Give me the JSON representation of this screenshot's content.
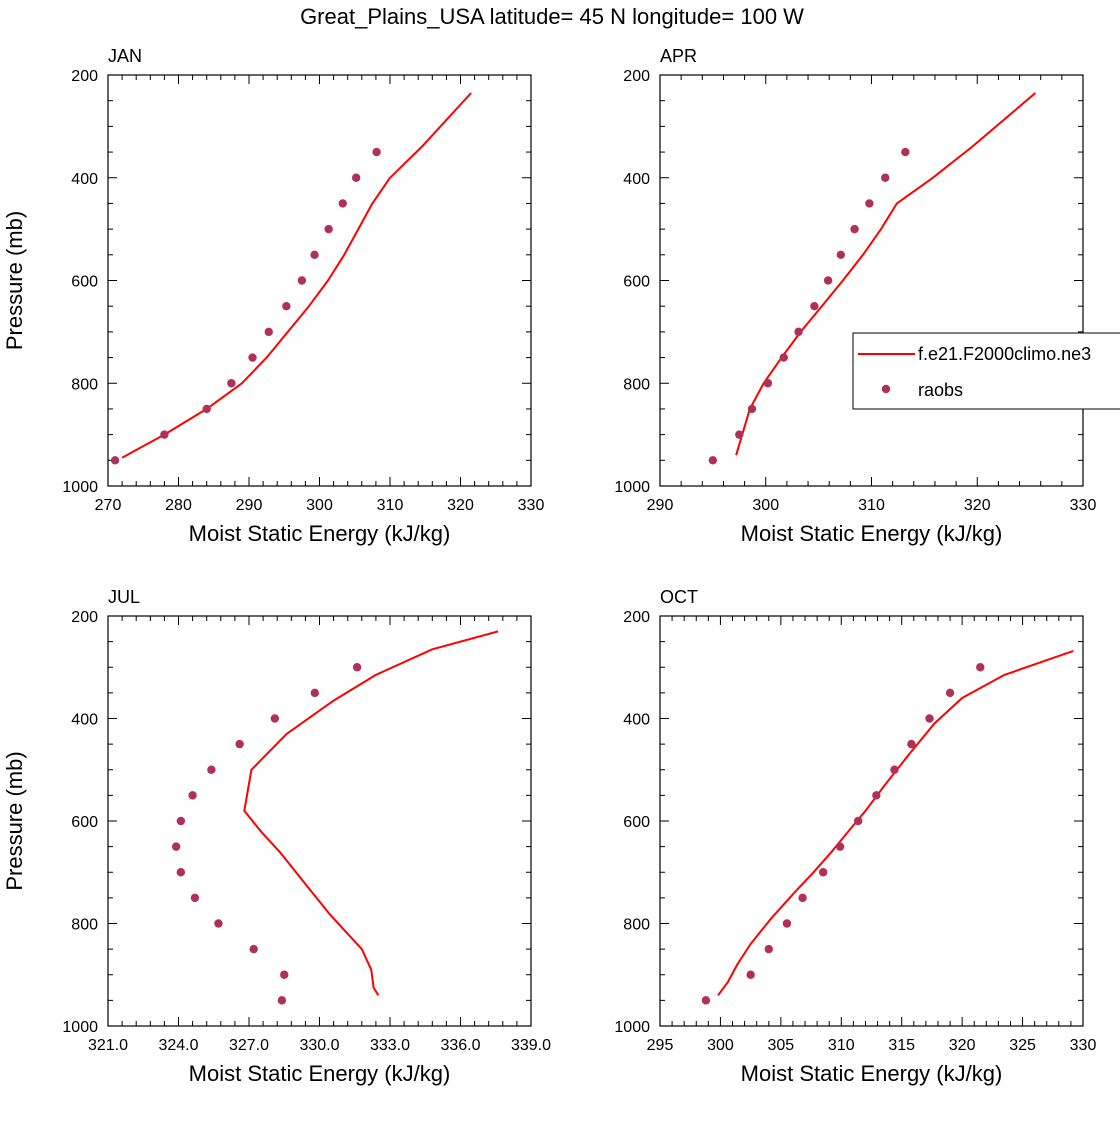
{
  "figure": {
    "title": "Great_Plains_USA  latitude= 45 N longitude= 100 W"
  },
  "colors": {
    "model": "#ff0000",
    "obs": "#b0305c",
    "axis": "#000000"
  },
  "legend": {
    "placement": "right, inside APR panel (clipped at figure edge)",
    "model_label": "f.e21.F2000climo.ne3",
    "obs_label": "raobs"
  },
  "chart_data": [
    {
      "type": "line",
      "panel": "JAN",
      "xlabel": "Moist Static Energy (kJ/kg)",
      "ylabel": "Pressure (mb)",
      "xlim": [
        270,
        330
      ],
      "ylim": [
        200,
        1000
      ],
      "y_inverted": true,
      "xticks": [
        270,
        280,
        290,
        300,
        310,
        320,
        330
      ],
      "xtick_labels": [
        "270",
        "280",
        "290",
        "300",
        "310",
        "320",
        "330"
      ],
      "yticks": [
        200,
        400,
        600,
        800,
        1000
      ],
      "ytick_labels": [
        "200",
        "400",
        "600",
        "800",
        "1000"
      ],
      "series": [
        {
          "kind": "model",
          "style": "line",
          "x": [
            272.0,
            278.0,
            284.0,
            289.0,
            292.5,
            295.5,
            298.5,
            301.2,
            303.5,
            305.5,
            307.5,
            310.0,
            314.5,
            321.5
          ],
          "y": [
            945,
            900,
            850,
            800,
            750,
            700,
            650,
            600,
            550,
            500,
            450,
            400,
            340,
            235
          ]
        },
        {
          "kind": "obs",
          "style": "markers",
          "x": [
            271.0,
            278.0,
            284.0,
            287.5,
            290.5,
            292.8,
            295.3,
            297.5,
            299.3,
            301.3,
            303.3,
            305.2,
            308.1
          ],
          "y": [
            950,
            900,
            850,
            800,
            750,
            700,
            650,
            600,
            550,
            500,
            450,
            400,
            350
          ]
        }
      ]
    },
    {
      "type": "line",
      "panel": "APR",
      "xlabel": "Moist Static Energy (kJ/kg)",
      "ylabel": "",
      "xlim": [
        290,
        330
      ],
      "ylim": [
        200,
        1000
      ],
      "y_inverted": true,
      "xticks": [
        290,
        300,
        310,
        320,
        330
      ],
      "xtick_labels": [
        "290",
        "300",
        "310",
        "320",
        "330"
      ],
      "yticks": [
        200,
        400,
        600,
        800,
        1000
      ],
      "ytick_labels": [
        "200",
        "400",
        "600",
        "800",
        "1000"
      ],
      "series": [
        {
          "kind": "model",
          "style": "line",
          "x": [
            297.2,
            298.5,
            299.8,
            301.5,
            303.3,
            305.3,
            307.3,
            309.2,
            310.9,
            312.4,
            315.8,
            319.5,
            325.5
          ],
          "y": [
            940,
            850,
            800,
            750,
            700,
            650,
            600,
            550,
            500,
            450,
            400,
            340,
            235
          ]
        },
        {
          "kind": "obs",
          "style": "markers",
          "x": [
            295.0,
            297.5,
            298.7,
            300.2,
            301.7,
            303.1,
            304.6,
            305.9,
            307.1,
            308.4,
            309.8,
            311.3,
            313.2
          ],
          "y": [
            950,
            900,
            850,
            800,
            750,
            700,
            650,
            600,
            550,
            500,
            450,
            400,
            350
          ]
        }
      ]
    },
    {
      "type": "line",
      "panel": "JUL",
      "xlabel": "Moist Static Energy (kJ/kg)",
      "ylabel": "Pressure (mb)",
      "xlim": [
        321.0,
        339.0
      ],
      "ylim": [
        200,
        1000
      ],
      "y_inverted": true,
      "xticks": [
        321,
        324,
        327,
        330,
        333,
        336,
        339
      ],
      "xtick_labels": [
        "321.0",
        "324.0",
        "327.0",
        "330.0",
        "333.0",
        "336.0",
        "339.0"
      ],
      "yticks": [
        200,
        400,
        600,
        800,
        1000
      ],
      "ytick_labels": [
        "200",
        "400",
        "600",
        "800",
        "1000"
      ],
      "series": [
        {
          "kind": "model",
          "style": "line",
          "x": [
            332.5,
            332.3,
            332.2,
            331.8,
            331.2,
            330.4,
            329.7,
            329.0,
            328.3,
            327.5,
            326.8,
            327.1,
            328.6,
            330.6,
            332.4,
            334.8,
            337.6
          ],
          "y": [
            940,
            925,
            890,
            850,
            820,
            780,
            740,
            700,
            660,
            620,
            580,
            500,
            430,
            365,
            315,
            265,
            230
          ]
        },
        {
          "kind": "obs",
          "style": "markers",
          "x": [
            328.4,
            328.5,
            327.2,
            325.7,
            324.7,
            324.1,
            323.9,
            324.1,
            324.6,
            325.4,
            326.6,
            328.1,
            329.8,
            331.6
          ],
          "y": [
            950,
            900,
            850,
            800,
            750,
            700,
            650,
            600,
            550,
            500,
            450,
            400,
            350,
            300
          ]
        }
      ]
    },
    {
      "type": "line",
      "panel": "OCT",
      "xlabel": "Moist Static Energy (kJ/kg)",
      "ylabel": "",
      "xlim": [
        295,
        330
      ],
      "ylim": [
        200,
        1000
      ],
      "y_inverted": true,
      "xticks": [
        295,
        300,
        305,
        310,
        315,
        320,
        325,
        330
      ],
      "xtick_labels": [
        "295",
        "300",
        "305",
        "310",
        "315",
        "320",
        "325",
        "330"
      ],
      "yticks": [
        200,
        400,
        600,
        800,
        1000
      ],
      "ytick_labels": [
        "200",
        "400",
        "600",
        "800",
        "1000"
      ],
      "series": [
        {
          "kind": "model",
          "style": "line",
          "x": [
            299.8,
            300.6,
            301.4,
            302.5,
            304.2,
            306.1,
            307.7,
            309.2,
            310.6,
            312.0,
            313.6,
            315.6,
            317.7,
            320.0,
            323.5,
            329.2
          ],
          "y": [
            940,
            915,
            880,
            840,
            790,
            740,
            700,
            660,
            620,
            580,
            530,
            470,
            410,
            360,
            315,
            268
          ]
        },
        {
          "kind": "obs",
          "style": "markers",
          "x": [
            298.8,
            302.5,
            304.0,
            305.5,
            306.8,
            308.5,
            309.9,
            311.4,
            312.9,
            314.4,
            315.8,
            317.3,
            319.0,
            321.5
          ],
          "y": [
            950,
            900,
            850,
            800,
            750,
            700,
            650,
            600,
            550,
            500,
            450,
            400,
            350,
            300
          ]
        }
      ]
    }
  ]
}
